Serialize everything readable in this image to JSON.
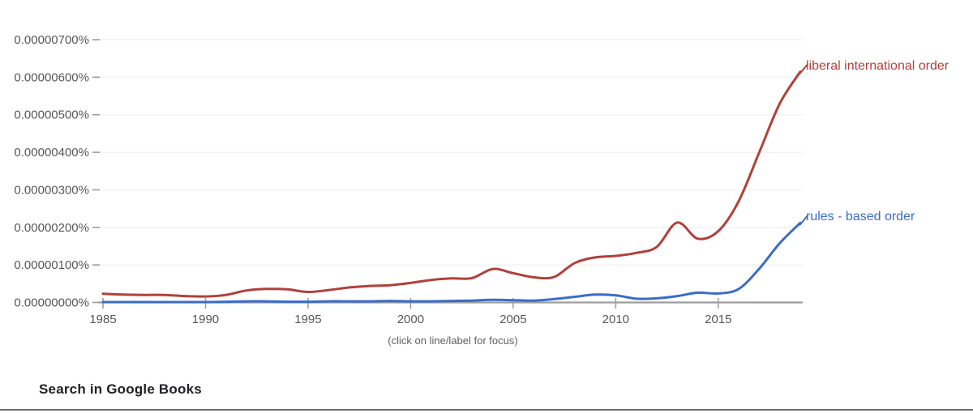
{
  "chart_data": {
    "type": "line",
    "title": "",
    "x": [
      1985,
      1986,
      1987,
      1988,
      1989,
      1990,
      1991,
      1992,
      1993,
      1994,
      1995,
      1996,
      1997,
      1998,
      1999,
      2000,
      2001,
      2002,
      2003,
      2004,
      2005,
      2006,
      2007,
      2008,
      2009,
      2010,
      2011,
      2012,
      2013,
      2014,
      2015,
      2016,
      2017,
      2018,
      2019
    ],
    "xlim": [
      1985,
      2019
    ],
    "x_ticks": [
      {
        "year": 1985,
        "label": "1985"
      },
      {
        "year": 1990,
        "label": "1990"
      },
      {
        "year": 1995,
        "label": "1995"
      },
      {
        "year": 2000,
        "label": "2000"
      },
      {
        "year": 2005,
        "label": "2005"
      },
      {
        "year": 2010,
        "label": "2010"
      },
      {
        "year": 2015,
        "label": "2015"
      }
    ],
    "y_ticks": [
      {
        "value_e8": 700,
        "label": "0.00000700%"
      },
      {
        "value_e8": 600,
        "label": "0.00000600%"
      },
      {
        "value_e8": 500,
        "label": "0.00000500%"
      },
      {
        "value_e8": 400,
        "label": "0.00000400%"
      },
      {
        "value_e8": 300,
        "label": "0.00000300%"
      },
      {
        "value_e8": 200,
        "label": "0.00000200%"
      },
      {
        "value_e8": 100,
        "label": "0.00000100%"
      },
      {
        "value_e8": 0,
        "label": "0.00000000%"
      }
    ],
    "ylim_e8": [
      0,
      700
    ],
    "values_unit_note": "values_e8 are in units of 0.00000001% (1e-8 percent)",
    "grid": "horizontal, very faint",
    "legend_position": "labels at right end of each line",
    "series": [
      {
        "name": "liberal international order",
        "color": "#b0413a",
        "values_e8": [
          23,
          21,
          20,
          20,
          17,
          16,
          20,
          32,
          36,
          35,
          28,
          33,
          40,
          44,
          46,
          52,
          60,
          64,
          65,
          89,
          78,
          67,
          68,
          105,
          120,
          124,
          132,
          148,
          213,
          170,
          190,
          270,
          400,
          530,
          615
        ]
      },
      {
        "name": "rules - based order",
        "color": "#3b6cc7",
        "values_e8": [
          1,
          1,
          1,
          1,
          1,
          1,
          2,
          3,
          3,
          2,
          2,
          3,
          3,
          3,
          4,
          3,
          3,
          4,
          5,
          7,
          6,
          5,
          9,
          15,
          21,
          19,
          10,
          11,
          17,
          26,
          24,
          36,
          90,
          158,
          212
        ]
      }
    ],
    "caption": "(click on line/label for focus)"
  },
  "footer": {
    "search_link": "Search in Google Books"
  },
  "colors": {
    "red_series": "#b0413a",
    "blue_series": "#3b6cc7",
    "axis_line": "#9e9e9e",
    "tick_text": "#55575a",
    "gridline": "#f1f1f1",
    "caption_text": "#5f6062",
    "footer_text": "#202124",
    "divider": "#6b6b6b"
  }
}
